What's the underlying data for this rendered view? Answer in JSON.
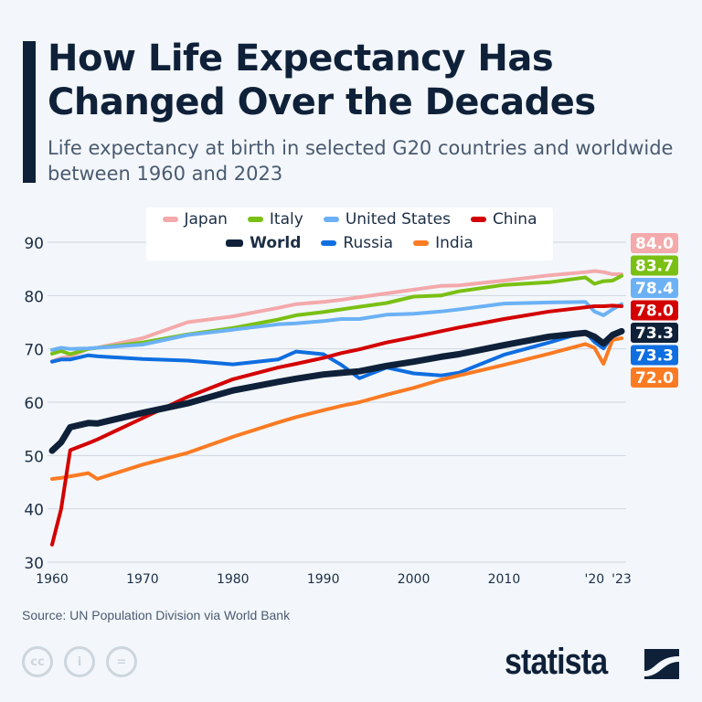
{
  "header": {
    "title": "How Life Expectancy Has Changed Over the Decades",
    "subtitle": "Life expectancy at birth in selected G20 countries and worldwide between 1960 and 2023"
  },
  "footer": {
    "source": "Source: UN Population Division via World Bank",
    "logo": "statista",
    "license_icons": [
      "cc-icon",
      "attribution-icon",
      "no-derivatives-icon"
    ]
  },
  "chart_data": {
    "type": "line",
    "title": "How Life Expectancy Has Changed Over the Decades",
    "ylim": [
      30,
      90
    ],
    "xlim": [
      1960,
      2023
    ],
    "yticks": [
      "30",
      "40",
      "50",
      "60",
      "70",
      "80",
      "90"
    ],
    "xticks": [
      {
        "year": 1960,
        "label": "1960"
      },
      {
        "year": 1970,
        "label": "1970"
      },
      {
        "year": 1980,
        "label": "1980"
      },
      {
        "year": 1990,
        "label": "1990"
      },
      {
        "year": 2000,
        "label": "2000"
      },
      {
        "year": 2010,
        "label": "2010"
      },
      {
        "year": 2020,
        "label": "'20"
      },
      {
        "year": 2023,
        "label": "'23"
      }
    ],
    "grid": true,
    "legend_placement": "top",
    "x": [
      1960,
      1961,
      1962,
      1964,
      1965,
      1970,
      1975,
      1980,
      1985,
      1987,
      1990,
      1992,
      1994,
      1997,
      2000,
      2003,
      2005,
      2010,
      2015,
      2019,
      2020,
      2021,
      2022,
      2023
    ],
    "series": [
      {
        "name": "Japan",
        "color": "#f4a9ab",
        "end_label": "84.0",
        "values": [
          67.7,
          68.3,
          68.6,
          70.0,
          70.2,
          72.0,
          75.0,
          76.1,
          77.7,
          78.4,
          78.8,
          79.2,
          79.7,
          80.4,
          81.1,
          81.8,
          81.9,
          82.8,
          83.8,
          84.4,
          84.6,
          84.4,
          84.0,
          84.0
        ]
      },
      {
        "name": "Italy",
        "color": "#7ac014",
        "end_label": "83.7",
        "values": [
          69.1,
          69.6,
          69.0,
          70.0,
          70.2,
          71.2,
          72.7,
          73.9,
          75.5,
          76.3,
          76.9,
          77.4,
          77.9,
          78.6,
          79.8,
          80.0,
          80.8,
          82.0,
          82.5,
          83.4,
          82.2,
          82.7,
          82.8,
          83.7
        ]
      },
      {
        "name": "United States",
        "color": "#6cb1f5",
        "end_label": "78.4",
        "values": [
          69.8,
          70.2,
          70.0,
          70.1,
          70.2,
          70.8,
          72.6,
          73.6,
          74.6,
          74.8,
          75.2,
          75.6,
          75.6,
          76.4,
          76.6,
          77.0,
          77.4,
          78.5,
          78.7,
          78.8,
          77.0,
          76.3,
          77.4,
          78.4
        ]
      },
      {
        "name": "China",
        "color": "#d40000",
        "end_label": "78.0",
        "values": [
          33.3,
          40.0,
          51.0,
          52.3,
          53.0,
          57.0,
          61.0,
          64.3,
          66.5,
          67.2,
          68.3,
          69.2,
          69.9,
          71.2,
          72.2,
          73.3,
          74.0,
          75.6,
          77.0,
          77.8,
          78.0,
          78.0,
          78.1,
          78.0
        ]
      },
      {
        "name": "World",
        "color": "#0f2139",
        "end_label": "73.3",
        "bold": true,
        "values": [
          50.9,
          52.5,
          55.3,
          56.1,
          56.0,
          58.0,
          59.8,
          62.2,
          63.8,
          64.4,
          65.2,
          65.5,
          65.8,
          66.8,
          67.6,
          68.5,
          69.0,
          70.7,
          72.3,
          73.0,
          72.3,
          71.0,
          72.6,
          73.3
        ]
      },
      {
        "name": "Russia",
        "color": "#0f6ee0",
        "end_label": "73.3",
        "values": [
          67.6,
          68.0,
          68.0,
          68.8,
          68.6,
          68.1,
          67.8,
          67.1,
          68.0,
          69.5,
          69.0,
          67.0,
          64.5,
          66.5,
          65.4,
          65.0,
          65.5,
          68.9,
          71.2,
          73.2,
          71.3,
          70.1,
          72.4,
          73.3
        ]
      },
      {
        "name": "India",
        "color": "#fb7b23",
        "end_label": "72.0",
        "values": [
          45.6,
          45.8,
          46.1,
          46.7,
          45.6,
          48.3,
          50.5,
          53.5,
          56.2,
          57.2,
          58.5,
          59.3,
          60.0,
          61.4,
          62.7,
          64.2,
          65.0,
          67.0,
          69.1,
          70.9,
          70.2,
          67.2,
          71.7,
          72.0
        ]
      }
    ]
  }
}
